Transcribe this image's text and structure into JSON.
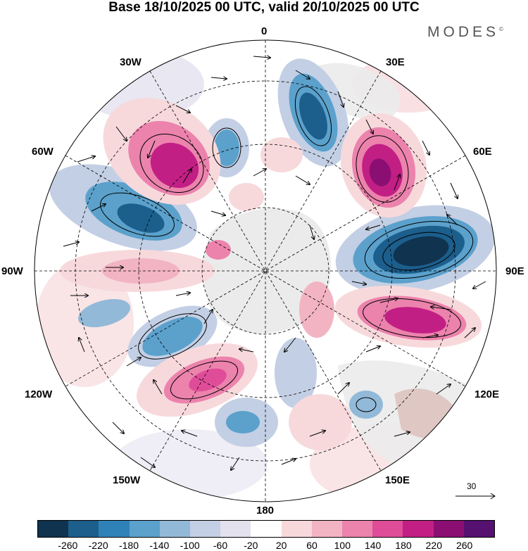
{
  "title": "Base 18/10/2025 00 UTC, valid 20/10/2025 00 UTC",
  "brand": "MODES",
  "brand_mark": "©",
  "longitude_labels": {
    "top": "0",
    "top_left": "30W",
    "top_right": "30E",
    "upper_left": "60W",
    "upper_right": "60E",
    "left": "90W",
    "right": "90E",
    "lower_left": "120W",
    "lower_right": "120E",
    "bottom_left": "150W",
    "bottom_right": "150E",
    "bottom": "180"
  },
  "reference_vector": {
    "label": "30"
  },
  "colorbar": {
    "colors": [
      "#10334f",
      "#1c5e8c",
      "#2f82b8",
      "#5ba1cc",
      "#93b9d9",
      "#c3cfe4",
      "#e4e1ee",
      "#ffffff",
      "#f7d9dc",
      "#f2b4c2",
      "#ec83ad",
      "#df4d99",
      "#c21f85",
      "#8b0f73",
      "#561070"
    ],
    "ticks": [
      "-260",
      "-220",
      "-180",
      "-140",
      "-100",
      "-60",
      "-20",
      "20",
      "60",
      "100",
      "140",
      "180",
      "220",
      "260"
    ]
  },
  "field_colors": {
    "land": "#ebebeb",
    "land_warm": "#ddc3bf"
  }
}
